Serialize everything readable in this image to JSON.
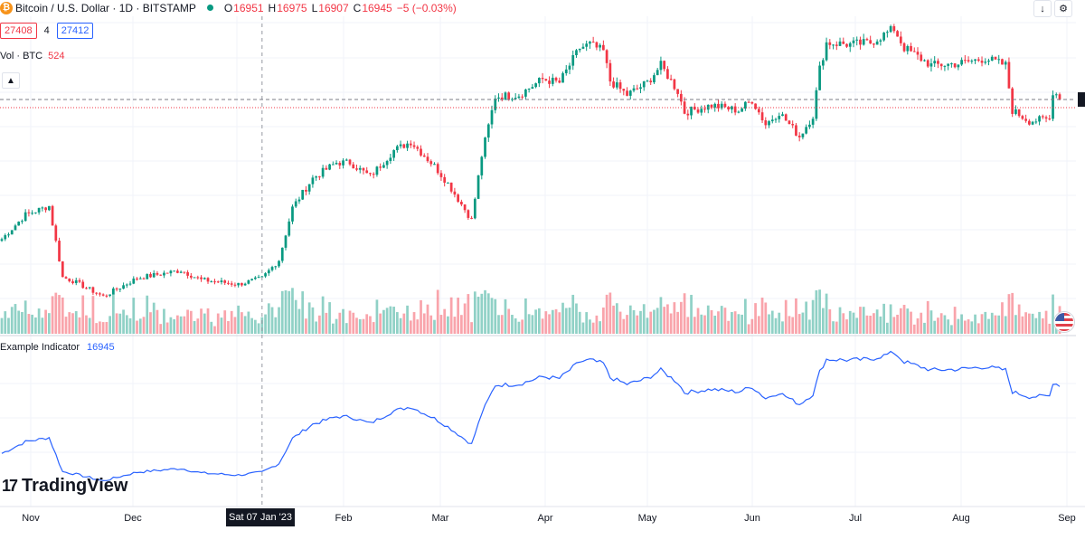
{
  "legend": {
    "title": "Bitcoin / U.S. Dollar · 1D · BITSTAMP",
    "ohlc": [
      {
        "key": "O",
        "value": "16951"
      },
      {
        "key": "H",
        "value": "16975"
      },
      {
        "key": "L",
        "value": "16907"
      },
      {
        "key": "C",
        "value": "16945"
      }
    ],
    "change": "−5 (−0.03%)"
  },
  "trade": {
    "sell": "27408",
    "spread": "4",
    "buy": "27412"
  },
  "volume_legend": {
    "label": "Vol · BTC",
    "value": "524"
  },
  "indicator_legend": {
    "label": "Example Indicator",
    "value": "16945"
  },
  "logo": {
    "text": "TradingView",
    "mark": "17"
  },
  "time_axis": {
    "labels": [
      "Nov",
      "Dec",
      "Feb",
      "Mar",
      "Apr",
      "May",
      "Jun",
      "Jul",
      "Aug",
      "Sep"
    ],
    "crosshair_label": "Sat 07 Jan '23"
  },
  "icons": {
    "collapse": "chevron-up-icon",
    "down_arrow": "arrow-down-icon",
    "market_badge": "us-flag-icon",
    "btc": "bitcoin-icon"
  },
  "colors": {
    "up": "#089981",
    "down": "#f23645",
    "indicator": "#2962ff"
  },
  "chart_data": {
    "type": "candlestick",
    "x_start": "2022-10-22",
    "x_end": "2023-08-31",
    "price_range": [
      15000,
      31000
    ],
    "waypoints": [
      [
        "2022-10-22",
        19200
      ],
      [
        "2022-10-29",
        20600
      ],
      [
        "2022-11-05",
        21100
      ],
      [
        "2022-11-09",
        17000
      ],
      [
        "2022-11-12",
        16800
      ],
      [
        "2022-11-21",
        15900
      ],
      [
        "2022-12-01",
        16950
      ],
      [
        "2022-12-14",
        17400
      ],
      [
        "2022-12-20",
        16850
      ],
      [
        "2022-12-31",
        16600
      ],
      [
        "2023-01-07",
        16945
      ],
      [
        "2023-01-12",
        18000
      ],
      [
        "2023-01-16",
        21000
      ],
      [
        "2023-01-22",
        22700
      ],
      [
        "2023-01-29",
        23600
      ],
      [
        "2023-02-02",
        23600
      ],
      [
        "2023-02-08",
        22800
      ],
      [
        "2023-02-15",
        24300
      ],
      [
        "2023-02-20",
        24800
      ],
      [
        "2023-02-27",
        23400
      ],
      [
        "2023-03-03",
        22400
      ],
      [
        "2023-03-10",
        20300
      ],
      [
        "2023-03-13",
        24000
      ],
      [
        "2023-03-17",
        27400
      ],
      [
        "2023-03-24",
        27500
      ],
      [
        "2023-03-31",
        28400
      ],
      [
        "2023-04-05",
        28200
      ],
      [
        "2023-04-11",
        30200
      ],
      [
        "2023-04-14",
        30400
      ],
      [
        "2023-04-18",
        30000
      ],
      [
        "2023-04-20",
        28300
      ],
      [
        "2023-04-25",
        27500
      ],
      [
        "2023-05-01",
        28200
      ],
      [
        "2023-05-05",
        29200
      ],
      [
        "2023-05-10",
        27700
      ],
      [
        "2023-05-12",
        26500
      ],
      [
        "2023-05-20",
        26900
      ],
      [
        "2023-05-28",
        26600
      ],
      [
        "2023-06-01",
        27200
      ],
      [
        "2023-06-05",
        25800
      ],
      [
        "2023-06-09",
        26500
      ],
      [
        "2023-06-15",
        25100
      ],
      [
        "2023-06-19",
        26300
      ],
      [
        "2023-06-21",
        29000
      ],
      [
        "2023-06-23",
        30500
      ],
      [
        "2023-06-30",
        30400
      ],
      [
        "2023-07-06",
        30500
      ],
      [
        "2023-07-13",
        31300
      ],
      [
        "2023-07-16",
        30200
      ],
      [
        "2023-07-24",
        29200
      ],
      [
        "2023-08-01",
        29300
      ],
      [
        "2023-08-09",
        29600
      ],
      [
        "2023-08-15",
        29200
      ],
      [
        "2023-08-17",
        26600
      ],
      [
        "2023-08-22",
        26000
      ],
      [
        "2023-08-28",
        26100
      ],
      [
        "2023-08-29",
        27700
      ],
      [
        "2023-08-31",
        27400
      ]
    ],
    "indicator": {
      "name": "Example Indicator",
      "last_value": 16945
    }
  }
}
